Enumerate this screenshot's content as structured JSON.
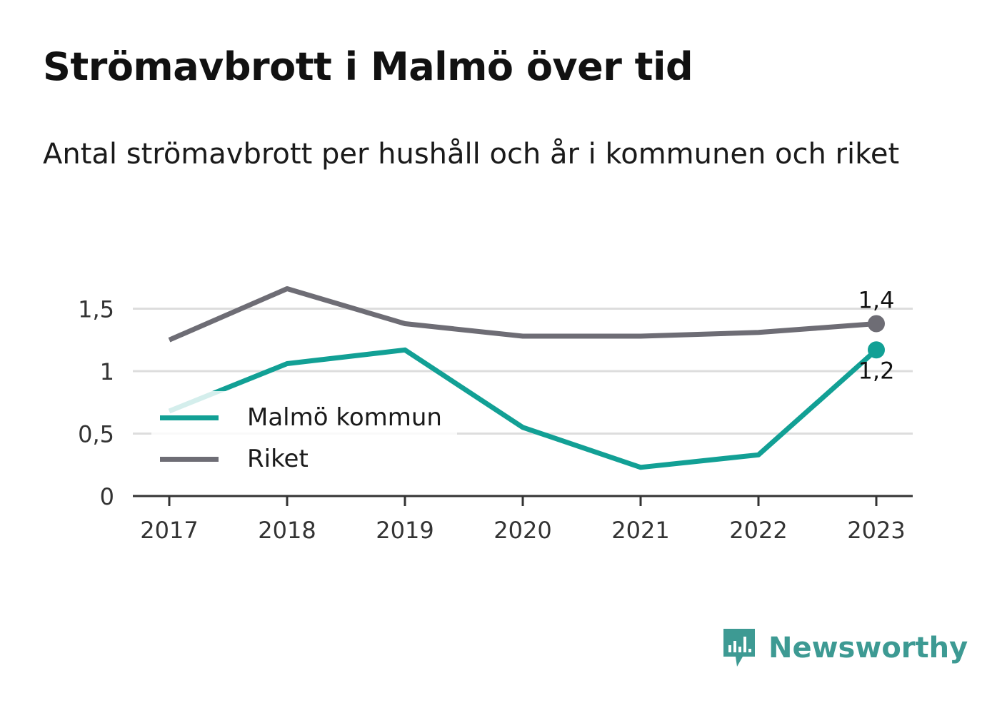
{
  "title": "Strömavbrott i Malmö över tid",
  "subtitle": "Antal strömavbrott per hushåll och år i kommunen och riket",
  "chart_data": {
    "type": "line",
    "title": "Strömavbrott i Malmö över tid",
    "subtitle": "Antal strömavbrott per hushåll och år i kommunen och riket",
    "xlabel": "",
    "ylabel": "",
    "x": [
      "2017",
      "2018",
      "2019",
      "2020",
      "2021",
      "2022",
      "2023"
    ],
    "y_ticks": [
      0,
      0.5,
      1,
      1.5
    ],
    "y_tick_labels": [
      "0",
      "0,5",
      "1",
      "1,5"
    ],
    "ylim": [
      0,
      1.8
    ],
    "grid": true,
    "legend_position": "left",
    "series": [
      {
        "name": "Malmö kommun",
        "color": "#12a095",
        "values": [
          0.68,
          1.06,
          1.17,
          0.55,
          0.23,
          0.33,
          1.17
        ],
        "end_label": "1,2"
      },
      {
        "name": "Riket",
        "color": "#6e6d75",
        "values": [
          1.25,
          1.66,
          1.38,
          1.28,
          1.28,
          1.31,
          1.38
        ],
        "end_label": "1,4"
      }
    ]
  },
  "brand": {
    "name": "Newsworthy",
    "icon": "bar-chart-speech-bubble-icon",
    "color": "#3d9a93"
  }
}
